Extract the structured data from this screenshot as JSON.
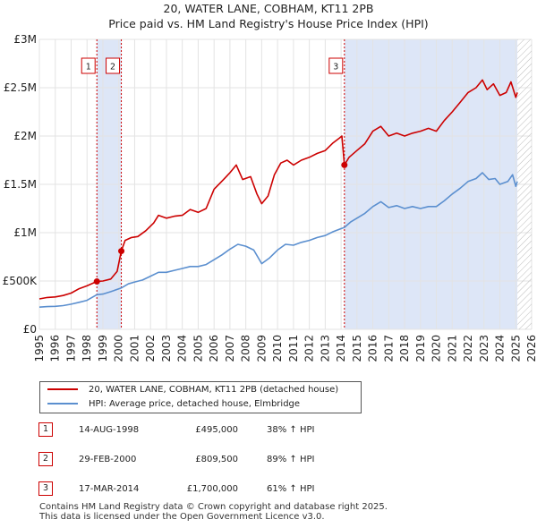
{
  "chart_data": {
    "type": "line",
    "title": "20, WATER LANE, COBHAM, KT11 2PB",
    "subtitle": "Price paid vs. HM Land Registry's House Price Index (HPI)",
    "xlim": [
      1995,
      2026
    ],
    "ylim": [
      0,
      3000000
    ],
    "y_ticks": [
      {
        "value": 0,
        "label": "£0"
      },
      {
        "value": 500000,
        "label": "£500K"
      },
      {
        "value": 1000000,
        "label": "£1M"
      },
      {
        "value": 1500000,
        "label": "£1.5M"
      },
      {
        "value": 2000000,
        "label": "£2M"
      },
      {
        "value": 2500000,
        "label": "£2.5M"
      },
      {
        "value": 3000000,
        "label": "£3M"
      }
    ],
    "x_ticks": [
      "1995",
      "1996",
      "1997",
      "1998",
      "1999",
      "2000",
      "2001",
      "2002",
      "2003",
      "2004",
      "2005",
      "2006",
      "2007",
      "2008",
      "2009",
      "2010",
      "2011",
      "2012",
      "2013",
      "2014",
      "2015",
      "2016",
      "2017",
      "2018",
      "2019",
      "2020",
      "2021",
      "2022",
      "2023",
      "2024",
      "2025",
      "2026"
    ],
    "colors": {
      "property": "#cc0000",
      "hpi": "#5b8fcf",
      "shade": "#dde6f7",
      "grid": "#e3e3e3",
      "marker_line": "#cc0000"
    },
    "hatch_from": 2025.1,
    "shade_ranges": [
      [
        1998.62,
        2000.16
      ],
      [
        2014.21,
        2025.1
      ]
    ],
    "series": [
      {
        "name": "20, WATER LANE, COBHAM, KT11 2PB (detached house)",
        "color": "#cc0000",
        "points": [
          [
            1995.0,
            315000
          ],
          [
            1995.5,
            330000
          ],
          [
            1996.0,
            335000
          ],
          [
            1996.5,
            350000
          ],
          [
            1997.0,
            375000
          ],
          [
            1997.5,
            420000
          ],
          [
            1998.0,
            450000
          ],
          [
            1998.62,
            495000
          ],
          [
            1999.0,
            500000
          ],
          [
            1999.5,
            520000
          ],
          [
            1999.9,
            600000
          ],
          [
            2000.16,
            809500
          ],
          [
            2000.4,
            920000
          ],
          [
            2000.8,
            950000
          ],
          [
            2001.2,
            960000
          ],
          [
            2001.7,
            1020000
          ],
          [
            2002.2,
            1100000
          ],
          [
            2002.5,
            1180000
          ],
          [
            2003.0,
            1150000
          ],
          [
            2003.5,
            1170000
          ],
          [
            2004.0,
            1180000
          ],
          [
            2004.5,
            1240000
          ],
          [
            2005.0,
            1210000
          ],
          [
            2005.5,
            1250000
          ],
          [
            2006.0,
            1450000
          ],
          [
            2006.6,
            1550000
          ],
          [
            2007.0,
            1620000
          ],
          [
            2007.4,
            1700000
          ],
          [
            2007.8,
            1550000
          ],
          [
            2008.3,
            1580000
          ],
          [
            2008.7,
            1400000
          ],
          [
            2009.0,
            1300000
          ],
          [
            2009.4,
            1380000
          ],
          [
            2009.8,
            1600000
          ],
          [
            2010.2,
            1720000
          ],
          [
            2010.6,
            1750000
          ],
          [
            2011.0,
            1700000
          ],
          [
            2011.5,
            1750000
          ],
          [
            2012.0,
            1780000
          ],
          [
            2012.5,
            1820000
          ],
          [
            2013.0,
            1850000
          ],
          [
            2013.5,
            1930000
          ],
          [
            2013.9,
            1980000
          ],
          [
            2014.05,
            2000000
          ],
          [
            2014.21,
            1700000
          ],
          [
            2014.5,
            1780000
          ],
          [
            2015.0,
            1850000
          ],
          [
            2015.5,
            1920000
          ],
          [
            2016.0,
            2050000
          ],
          [
            2016.5,
            2100000
          ],
          [
            2017.0,
            2000000
          ],
          [
            2017.5,
            2030000
          ],
          [
            2018.0,
            2000000
          ],
          [
            2018.5,
            2030000
          ],
          [
            2019.0,
            2050000
          ],
          [
            2019.5,
            2080000
          ],
          [
            2020.0,
            2050000
          ],
          [
            2020.5,
            2160000
          ],
          [
            2021.0,
            2250000
          ],
          [
            2021.5,
            2350000
          ],
          [
            2022.0,
            2450000
          ],
          [
            2022.5,
            2500000
          ],
          [
            2022.9,
            2580000
          ],
          [
            2023.2,
            2480000
          ],
          [
            2023.6,
            2540000
          ],
          [
            2024.0,
            2420000
          ],
          [
            2024.4,
            2450000
          ],
          [
            2024.7,
            2560000
          ],
          [
            2025.0,
            2400000
          ],
          [
            2025.1,
            2450000
          ]
        ]
      },
      {
        "name": "HPI: Average price, detached house, Elmbridge",
        "color": "#5b8fcf",
        "points": [
          [
            1995.0,
            230000
          ],
          [
            1995.5,
            235000
          ],
          [
            1996.0,
            238000
          ],
          [
            1996.5,
            245000
          ],
          [
            1997.0,
            260000
          ],
          [
            1997.5,
            280000
          ],
          [
            1998.0,
            300000
          ],
          [
            1998.62,
            358000
          ],
          [
            1999.0,
            365000
          ],
          [
            1999.5,
            390000
          ],
          [
            2000.16,
            428000
          ],
          [
            2000.6,
            470000
          ],
          [
            2001.0,
            490000
          ],
          [
            2001.5,
            510000
          ],
          [
            2002.0,
            550000
          ],
          [
            2002.5,
            590000
          ],
          [
            2003.0,
            590000
          ],
          [
            2003.5,
            610000
          ],
          [
            2004.0,
            630000
          ],
          [
            2004.5,
            650000
          ],
          [
            2005.0,
            650000
          ],
          [
            2005.5,
            670000
          ],
          [
            2006.0,
            720000
          ],
          [
            2006.5,
            770000
          ],
          [
            2007.0,
            830000
          ],
          [
            2007.5,
            880000
          ],
          [
            2008.0,
            860000
          ],
          [
            2008.5,
            820000
          ],
          [
            2009.0,
            680000
          ],
          [
            2009.5,
            740000
          ],
          [
            2010.0,
            820000
          ],
          [
            2010.5,
            880000
          ],
          [
            2011.0,
            870000
          ],
          [
            2011.5,
            900000
          ],
          [
            2012.0,
            920000
          ],
          [
            2012.5,
            950000
          ],
          [
            2013.0,
            970000
          ],
          [
            2013.5,
            1010000
          ],
          [
            2014.21,
            1055000
          ],
          [
            2014.6,
            1110000
          ],
          [
            2015.0,
            1150000
          ],
          [
            2015.5,
            1200000
          ],
          [
            2016.0,
            1270000
          ],
          [
            2016.5,
            1320000
          ],
          [
            2017.0,
            1260000
          ],
          [
            2017.5,
            1280000
          ],
          [
            2018.0,
            1250000
          ],
          [
            2018.5,
            1270000
          ],
          [
            2019.0,
            1250000
          ],
          [
            2019.5,
            1270000
          ],
          [
            2020.0,
            1270000
          ],
          [
            2020.5,
            1330000
          ],
          [
            2021.0,
            1400000
          ],
          [
            2021.5,
            1460000
          ],
          [
            2022.0,
            1530000
          ],
          [
            2022.5,
            1560000
          ],
          [
            2022.9,
            1620000
          ],
          [
            2023.3,
            1550000
          ],
          [
            2023.7,
            1560000
          ],
          [
            2024.0,
            1500000
          ],
          [
            2024.5,
            1530000
          ],
          [
            2024.8,
            1600000
          ],
          [
            2025.0,
            1480000
          ],
          [
            2025.1,
            1530000
          ]
        ]
      }
    ],
    "markers": [
      {
        "label": "1",
        "x": 1998.62,
        "value": 495000
      },
      {
        "label": "2",
        "x": 2000.16,
        "value": 809500
      },
      {
        "label": "3",
        "x": 2014.21,
        "value": 1700000
      }
    ]
  },
  "legend": {
    "property_label": "20, WATER LANE, COBHAM, KT11 2PB (detached house)",
    "hpi_label": "HPI: Average price, detached house, Elmbridge"
  },
  "sales": [
    {
      "num": "1",
      "date": "14-AUG-1998",
      "price": "£495,000",
      "hpi": "38% ↑ HPI"
    },
    {
      "num": "2",
      "date": "29-FEB-2000",
      "price": "£809,500",
      "hpi": "89% ↑ HPI"
    },
    {
      "num": "3",
      "date": "17-MAR-2014",
      "price": "£1,700,000",
      "hpi": "61% ↑ HPI"
    }
  ],
  "footer": {
    "line1": "Contains HM Land Registry data © Crown copyright and database right 2025.",
    "line2": "This data is licensed under the Open Government Licence v3.0."
  }
}
